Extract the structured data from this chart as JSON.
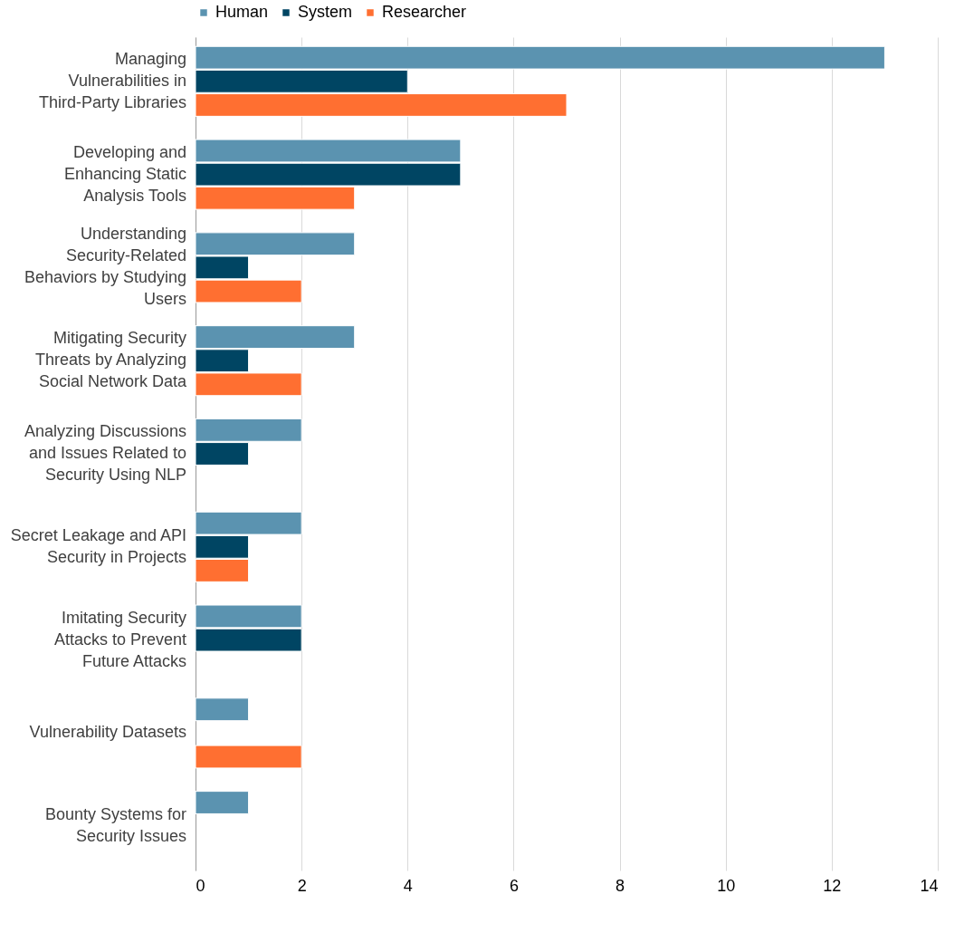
{
  "chart_data": {
    "type": "bar",
    "orientation": "horizontal",
    "categories": [
      "Managing Vulnerabilities in Third-Party Libraries",
      "Developing and Enhancing Static Analysis Tools",
      "Understanding Security-Related Behaviors by Studying Users",
      "Mitigating Security Threats by Analyzing Social Network Data",
      "Analyzing Discussions and Issues Related to Security Using NLP",
      "Secret Leakage and API Security in Projects",
      "Imitating Security Attacks to Prevent Future Attacks",
      "Vulnerability Datasets",
      "Bounty Systems for Security Issues"
    ],
    "series": [
      {
        "name": "Human",
        "color": "#5b93b0",
        "values": [
          13,
          5,
          3,
          3,
          2,
          2,
          2,
          1,
          1
        ]
      },
      {
        "name": "System",
        "color": "#004563",
        "values": [
          4,
          5,
          1,
          1,
          1,
          1,
          2,
          null,
          null
        ]
      },
      {
        "name": "Researcher",
        "color": "#ff6f31",
        "values": [
          7,
          3,
          2,
          2,
          null,
          1,
          null,
          2,
          null
        ]
      }
    ],
    "xlim": [
      0,
      14
    ],
    "xticks": [
      0,
      2,
      4,
      6,
      8,
      10,
      12,
      14
    ],
    "grid": "x",
    "legend": "top"
  }
}
